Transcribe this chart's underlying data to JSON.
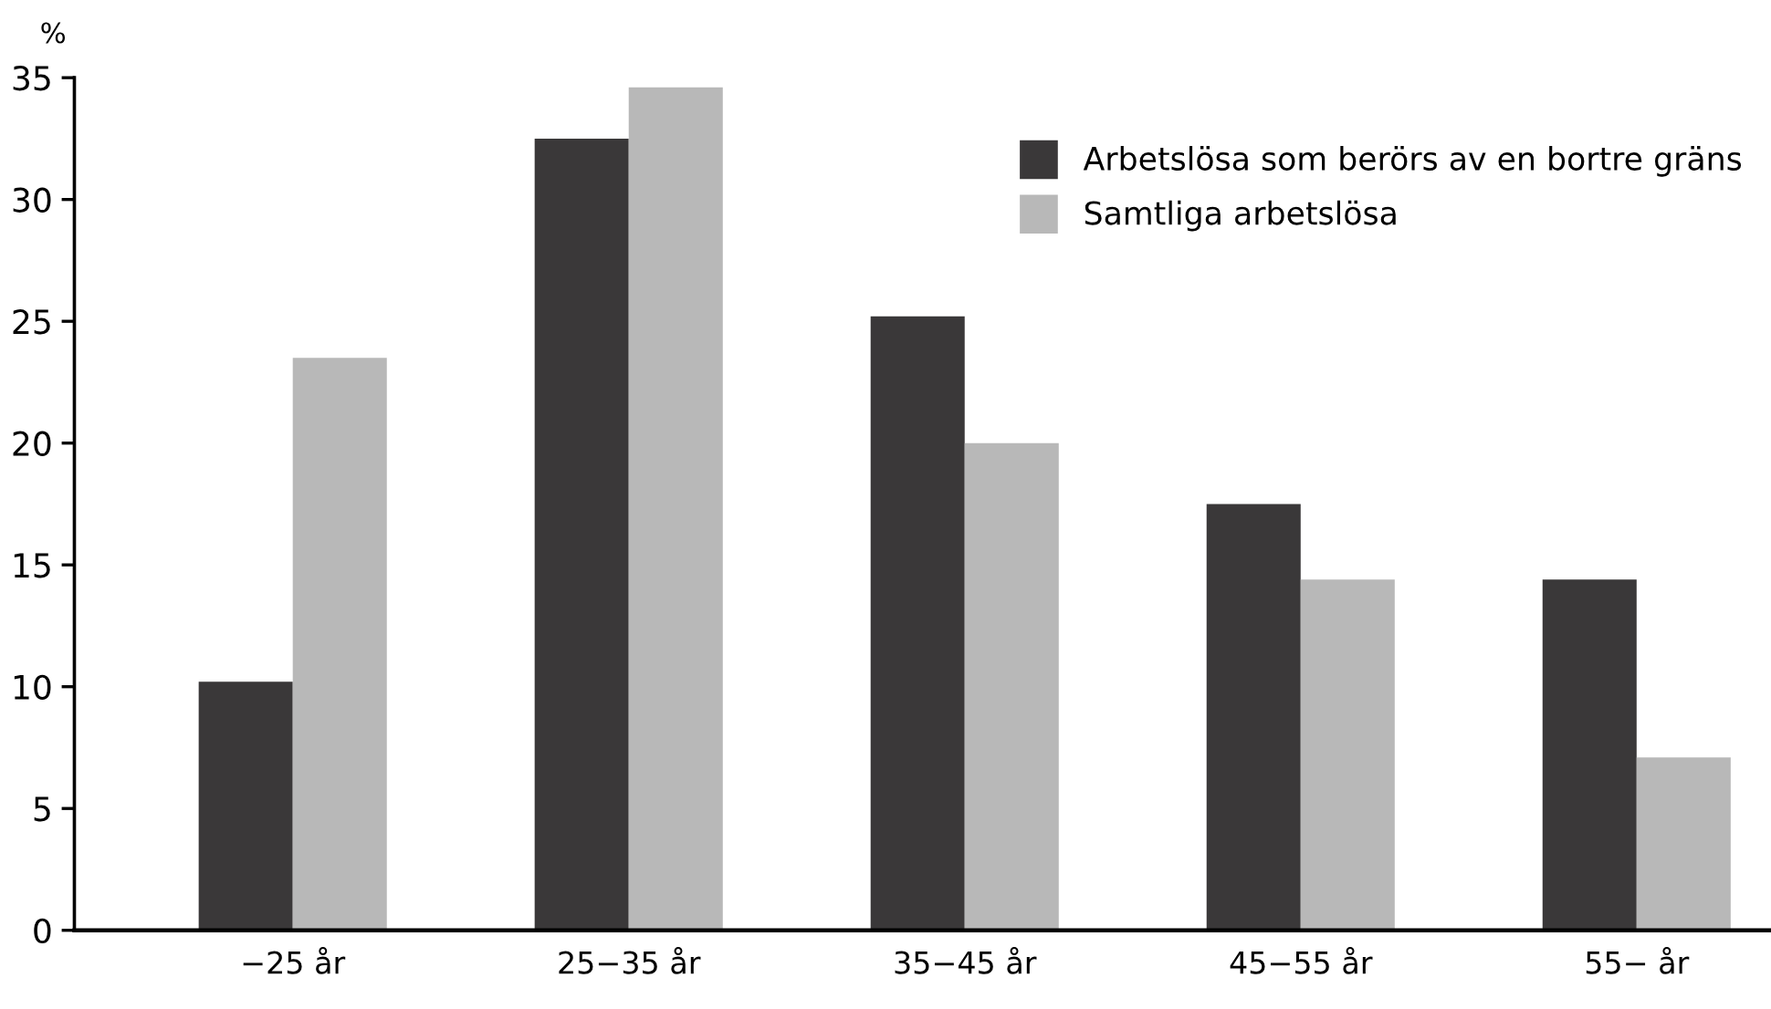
{
  "chart_data": {
    "type": "bar",
    "ylabel": "%",
    "categories": [
      "−25 år",
      "25−35 år",
      "35−45 år",
      "45−55 år",
      "55− år"
    ],
    "series": [
      {
        "name": "Arbetslösa som berörs av en bortre gräns",
        "color": "#3a3839",
        "values": [
          10.2,
          32.5,
          25.2,
          17.5,
          14.4
        ]
      },
      {
        "name": "Samtliga arbetslösa",
        "color": "#b8b8b8",
        "values": [
          23.5,
          34.6,
          20.0,
          14.4,
          7.1
        ]
      }
    ],
    "ylim": [
      0,
      35
    ],
    "yticks": [
      0,
      5,
      10,
      15,
      20,
      25,
      30,
      35
    ],
    "grid": false,
    "legend": "top right"
  }
}
